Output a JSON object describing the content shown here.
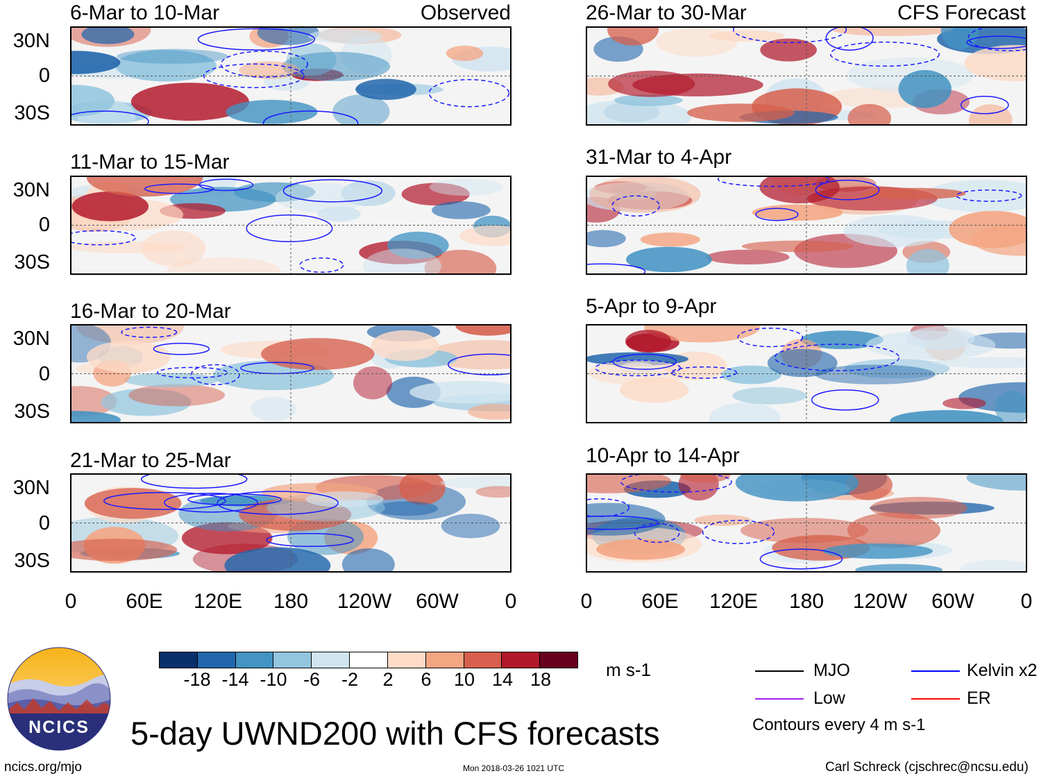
{
  "header": {
    "observed_label": "Observed",
    "forecast_label": "CFS Forecast"
  },
  "panels": {
    "left": [
      {
        "title": "6-Mar to 10-Mar"
      },
      {
        "title": "11-Mar to 15-Mar"
      },
      {
        "title": "16-Mar to 20-Mar"
      },
      {
        "title": "21-Mar to 25-Mar"
      }
    ],
    "right": [
      {
        "title": "26-Mar to 30-Mar"
      },
      {
        "title": "31-Mar to 4-Apr"
      },
      {
        "title": "5-Apr to 9-Apr"
      },
      {
        "title": "10-Apr to 14-Apr"
      }
    ]
  },
  "axes": {
    "lat_labels": [
      "30N",
      "0",
      "30S"
    ],
    "lon_labels": [
      "0",
      "60E",
      "120E",
      "180",
      "120W",
      "60W",
      "0"
    ]
  },
  "colorbar": {
    "tick_labels": [
      "-18",
      "-14",
      "-10",
      "-6",
      "-2",
      "2",
      "6",
      "10",
      "14",
      "18"
    ],
    "colors": [
      "#08306b",
      "#2166ac",
      "#4393c3",
      "#92c5de",
      "#d1e5f0",
      "#ffffff",
      "#fddbc7",
      "#f4a582",
      "#d6604d",
      "#b2182b",
      "#67001f"
    ],
    "units": "m s-1"
  },
  "legend": {
    "items": [
      {
        "label": "MJO",
        "color": "#000000"
      },
      {
        "label": "Kelvin x2",
        "color": "#0000ff"
      },
      {
        "label": "Low",
        "color": "#a020f0"
      },
      {
        "label": "ER",
        "color": "#ff0000"
      }
    ],
    "contour_note": "Contours every 4 m s-1"
  },
  "footer": {
    "title": "5-day UWND200 with CFS forecasts",
    "logo_text": "NCICS",
    "url": "ncics.org/mjo",
    "timestamp": "Mon 2018-03-26 1021 UTC",
    "credit": "Carl Schreck (cjschrec@ncsu.edu)"
  }
}
